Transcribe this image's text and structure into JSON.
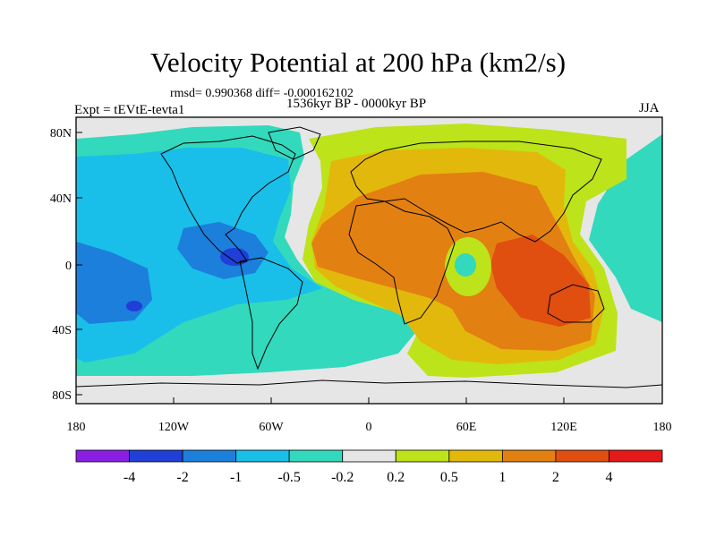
{
  "title": "Velocity Potential at 200 hPa (km2/s)",
  "stats_line": "rmsd= 0.990368 diff= -0.000162102",
  "period_line": "1536kyr BP - 0000kyr BP",
  "experiment_line": "Expt = tEVtE-tevta1",
  "season": "JJA",
  "axes": {
    "y_ticks": [
      "80N",
      "40N",
      "0",
      "40S",
      "80S"
    ],
    "x_ticks": [
      "180",
      "120W",
      "60W",
      "0",
      "60E",
      "120E",
      "180"
    ]
  },
  "colorbar": {
    "labels": [
      "-4",
      "-2",
      "-1",
      "-0.5",
      "-0.2",
      "0.2",
      "0.5",
      "1",
      "2",
      "4"
    ],
    "colors": [
      "#8a1fe3",
      "#1f3fd6",
      "#1c7fdc",
      "#19bfe8",
      "#33d9bc",
      "#e6e6e6",
      "#bde31a",
      "#e3b80c",
      "#e38012",
      "#e04e10",
      "#e41a1a"
    ]
  },
  "map_regions": {
    "background": "#e6e6e6",
    "pacific_tint": "#33d9bc",
    "west_basin": "#19bfe8",
    "west_core": "#1c7fdc",
    "west_minimum": "#1f3fd6",
    "east_fringe": "#bde31a",
    "east_mid": "#e3b80c",
    "east_high": "#e38012",
    "east_peak": "#e04e10",
    "continents": "#000000"
  }
}
